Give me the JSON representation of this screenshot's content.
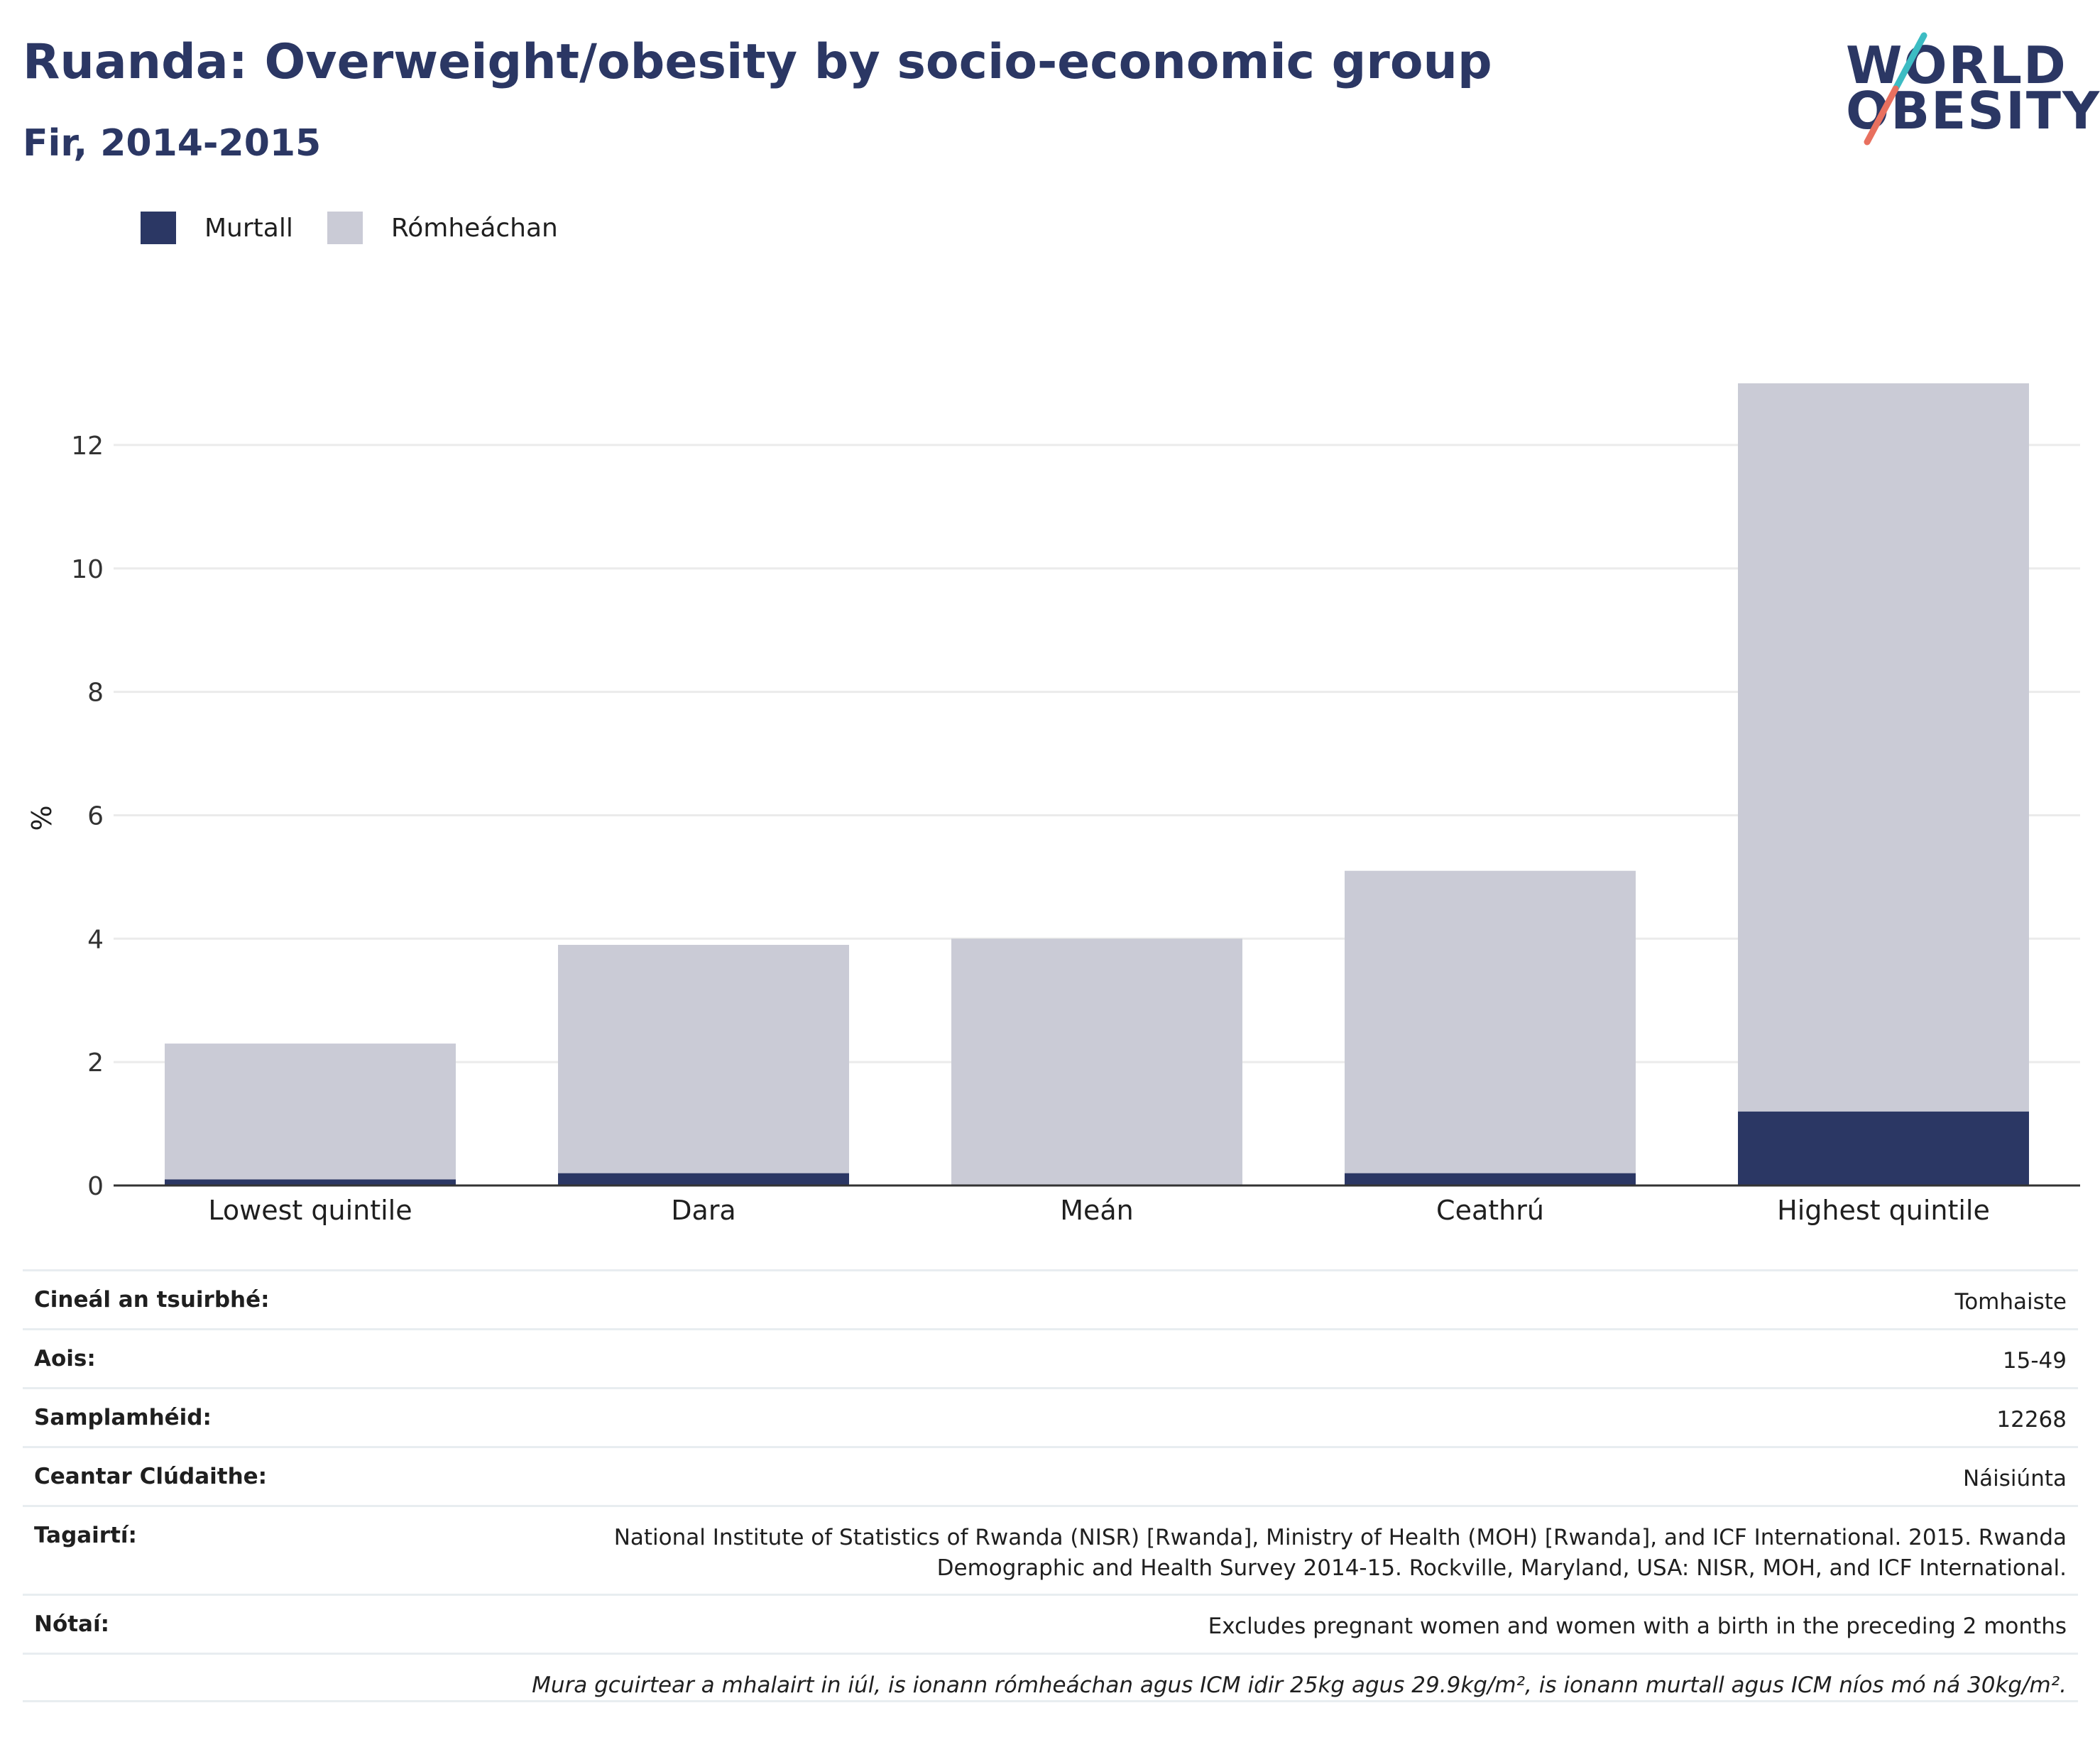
{
  "header": {
    "title": "Ruanda: Overweight/obesity by socio-economic group",
    "subtitle": "Fir, 2014-2015"
  },
  "logo": {
    "line1": "WORLD",
    "line2": "OBESITY",
    "icon": "world-obesity-logo"
  },
  "colors": {
    "obese": "#2b3764",
    "overweight": "#cacbd6",
    "title": "#2b3764",
    "grid": "#ebebeb",
    "axis": "#333333"
  },
  "legend": [
    {
      "label": "Murtall",
      "color": "#2b3764"
    },
    {
      "label": "Rómheáchan",
      "color": "#cacbd6"
    }
  ],
  "chart_data": {
    "type": "bar",
    "stacked": true,
    "categories": [
      "Lowest quintile",
      "Dara",
      "Meán",
      "Ceathrú",
      "Highest quintile"
    ],
    "series": [
      {
        "name": "Murtall",
        "values": [
          0.1,
          0.2,
          0.0,
          0.2,
          1.2
        ]
      },
      {
        "name": "Rómheáchan",
        "values": [
          2.2,
          3.7,
          4.0,
          4.9,
          11.8
        ]
      }
    ],
    "ylabel": "%",
    "ylim": [
      0,
      13
    ],
    "yticks": [
      0,
      2,
      4,
      6,
      8,
      10,
      12
    ],
    "grid": true,
    "legend_position": "top-left"
  },
  "info_table": [
    {
      "label": "Cineál an tsuirbhé:",
      "value": "Tomhaiste"
    },
    {
      "label": "Aois:",
      "value": "15-49"
    },
    {
      "label": "Samplamhéid:",
      "value": "12268"
    },
    {
      "label": "Ceantar Clúdaithe:",
      "value": "Náisiúnta"
    },
    {
      "label": "Tagairtí:",
      "value": "National Institute of Statistics of Rwanda (NISR) [Rwanda], Ministry of Health (MOH) [Rwanda], and ICF International. 2015. Rwanda Demographic and Health Survey 2014-15. Rockville, Maryland, USA: NISR, MOH, and ICF International."
    },
    {
      "label": "Nótaí:",
      "value": "Excludes pregnant women and women with a birth in the preceding 2 months"
    }
  ],
  "footnote": "Mura gcuirtear a mhalairt in iúl, is ionann rómheáchan agus ICM idir 25kg agus 29.9kg/m², is ionann murtall agus ICM níos mó ná 30kg/m²."
}
